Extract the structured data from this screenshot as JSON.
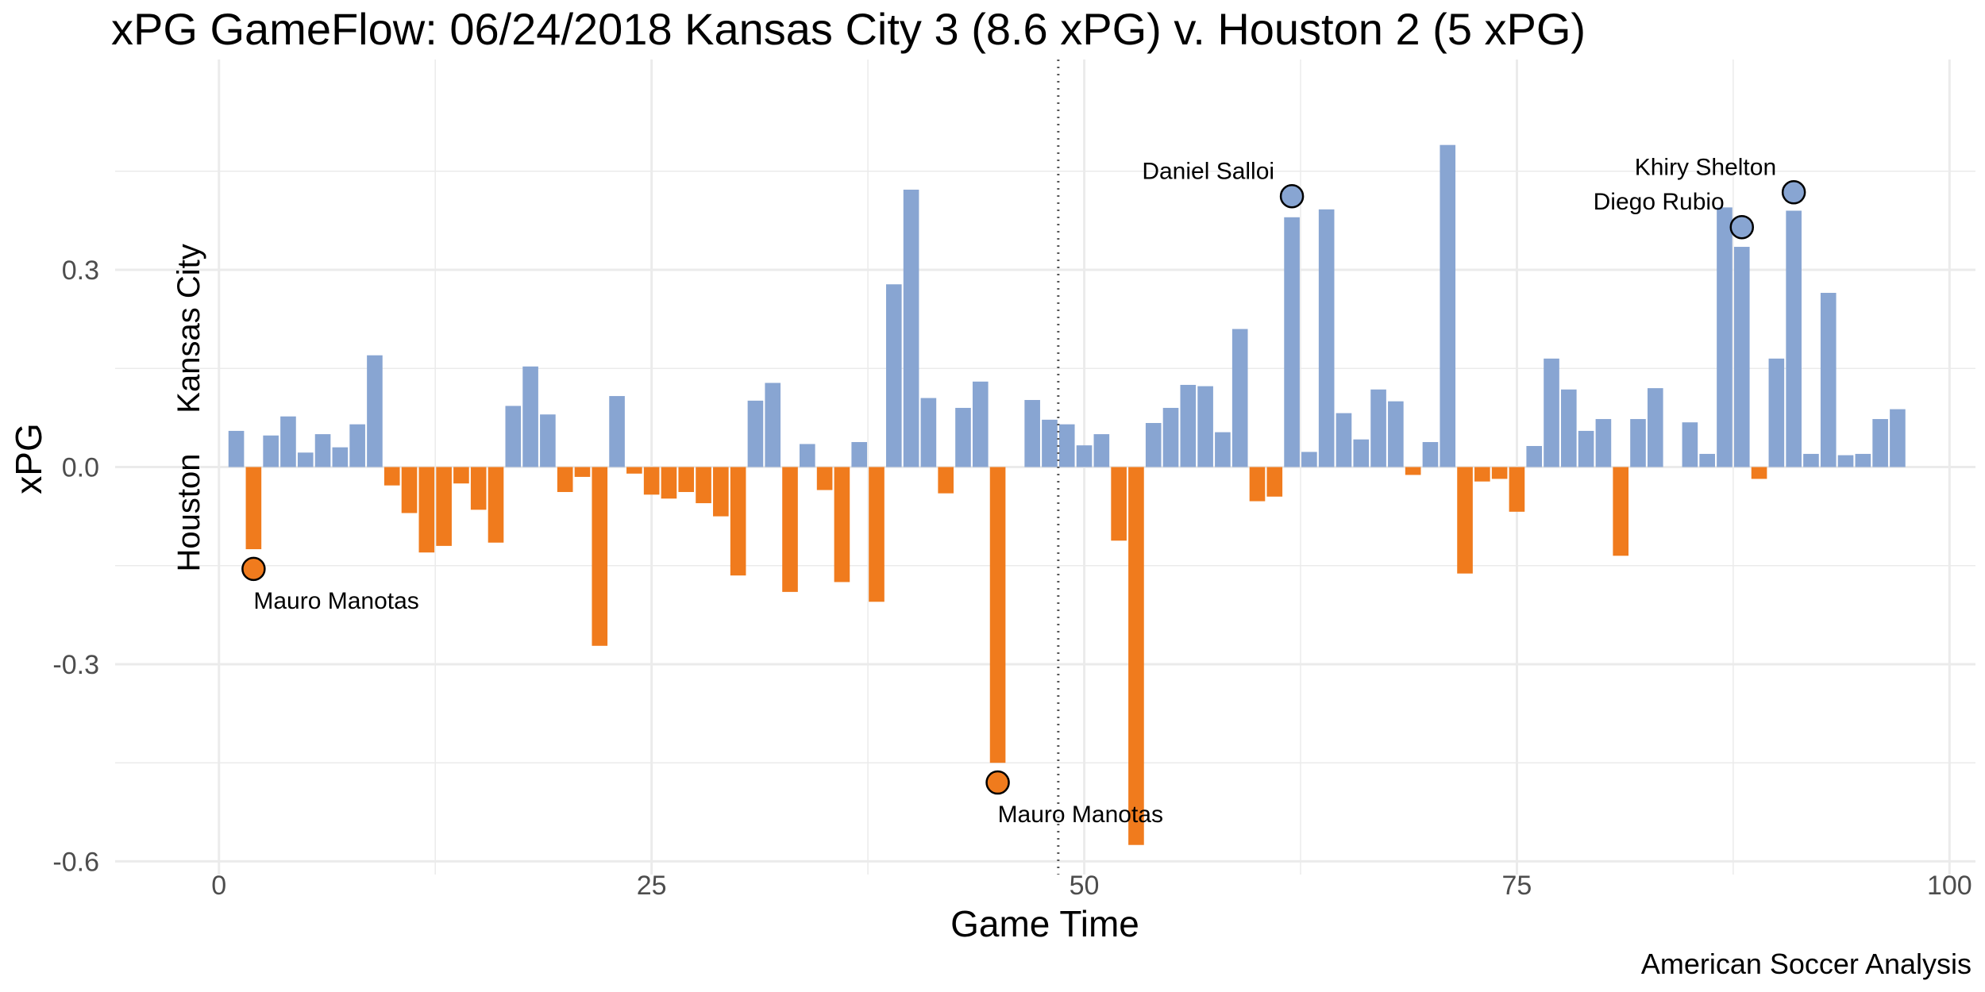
{
  "chart_data": {
    "type": "bar",
    "title": "xPG GameFlow: 06/24/2018 Kansas City 3 (8.6 xPG) v. Houston 2 (5 xPG)",
    "xlabel": "Game Time",
    "ylabel": "xPG",
    "xlim": [
      -6,
      101.5
    ],
    "ylim": [
      -0.62,
      0.62
    ],
    "xticks": [
      0,
      25,
      50,
      75,
      100
    ],
    "yticks": [
      -0.6,
      -0.3,
      0.0,
      0.3
    ],
    "ytick_labels": [
      "-0.6",
      "-0.3",
      "0.0",
      "0.3"
    ],
    "halftime": 48.5,
    "team_labels": {
      "home": "Kansas City",
      "away": "Houston"
    },
    "caption": "American Soccer Analysis",
    "colors": {
      "home": "#88a5d2",
      "away": "#f07b1d",
      "grid": "#ebebeb",
      "marker_stroke": "#000000"
    },
    "series": [
      {
        "name": "Kansas City",
        "color": "#88a5d2",
        "bars": [
          {
            "x": 1,
            "y": 0.055
          },
          {
            "x": 3,
            "y": 0.048
          },
          {
            "x": 4,
            "y": 0.077
          },
          {
            "x": 5,
            "y": 0.022
          },
          {
            "x": 6,
            "y": 0.05
          },
          {
            "x": 7,
            "y": 0.03
          },
          {
            "x": 8,
            "y": 0.065
          },
          {
            "x": 9,
            "y": 0.17
          },
          {
            "x": 17,
            "y": 0.093
          },
          {
            "x": 18,
            "y": 0.153
          },
          {
            "x": 19,
            "y": 0.08
          },
          {
            "x": 23,
            "y": 0.108
          },
          {
            "x": 31,
            "y": 0.101
          },
          {
            "x": 32,
            "y": 0.128
          },
          {
            "x": 34,
            "y": 0.035
          },
          {
            "x": 37,
            "y": 0.038
          },
          {
            "x": 39,
            "y": 0.278
          },
          {
            "x": 40,
            "y": 0.422
          },
          {
            "x": 41,
            "y": 0.105
          },
          {
            "x": 43,
            "y": 0.09
          },
          {
            "x": 44,
            "y": 0.13
          },
          {
            "x": 47,
            "y": 0.102
          },
          {
            "x": 48,
            "y": 0.072
          },
          {
            "x": 49,
            "y": 0.065
          },
          {
            "x": 50,
            "y": 0.033
          },
          {
            "x": 51,
            "y": 0.05
          },
          {
            "x": 54,
            "y": 0.067
          },
          {
            "x": 55,
            "y": 0.09
          },
          {
            "x": 56,
            "y": 0.125
          },
          {
            "x": 57,
            "y": 0.123
          },
          {
            "x": 58,
            "y": 0.053
          },
          {
            "x": 59,
            "y": 0.21
          },
          {
            "x": 62,
            "y": 0.38
          },
          {
            "x": 63,
            "y": 0.023
          },
          {
            "x": 64,
            "y": 0.392
          },
          {
            "x": 65,
            "y": 0.082
          },
          {
            "x": 66,
            "y": 0.042
          },
          {
            "x": 67,
            "y": 0.118
          },
          {
            "x": 68,
            "y": 0.1
          },
          {
            "x": 70,
            "y": 0.038
          },
          {
            "x": 71,
            "y": 0.49
          },
          {
            "x": 76,
            "y": 0.032
          },
          {
            "x": 77,
            "y": 0.165
          },
          {
            "x": 78,
            "y": 0.118
          },
          {
            "x": 79,
            "y": 0.055
          },
          {
            "x": 80,
            "y": 0.073
          },
          {
            "x": 82,
            "y": 0.073
          },
          {
            "x": 83,
            "y": 0.12
          },
          {
            "x": 85,
            "y": 0.068
          },
          {
            "x": 86,
            "y": 0.02
          },
          {
            "x": 87,
            "y": 0.395
          },
          {
            "x": 88,
            "y": 0.335
          },
          {
            "x": 90,
            "y": 0.165
          },
          {
            "x": 91,
            "y": 0.39
          },
          {
            "x": 92,
            "y": 0.02
          },
          {
            "x": 93,
            "y": 0.265
          },
          {
            "x": 94,
            "y": 0.018
          },
          {
            "x": 95,
            "y": 0.02
          },
          {
            "x": 96,
            "y": 0.073
          },
          {
            "x": 97,
            "y": 0.088
          }
        ]
      },
      {
        "name": "Houston",
        "color": "#f07b1d",
        "bars": [
          {
            "x": 2,
            "y": -0.125
          },
          {
            "x": 10,
            "y": -0.028
          },
          {
            "x": 11,
            "y": -0.07
          },
          {
            "x": 12,
            "y": -0.13
          },
          {
            "x": 13,
            "y": -0.12
          },
          {
            "x": 14,
            "y": -0.025
          },
          {
            "x": 15,
            "y": -0.065
          },
          {
            "x": 16,
            "y": -0.115
          },
          {
            "x": 20,
            "y": -0.038
          },
          {
            "x": 21,
            "y": -0.015
          },
          {
            "x": 22,
            "y": -0.272
          },
          {
            "x": 24,
            "y": -0.01
          },
          {
            "x": 25,
            "y": -0.042
          },
          {
            "x": 26,
            "y": -0.048
          },
          {
            "x": 27,
            "y": -0.038
          },
          {
            "x": 28,
            "y": -0.055
          },
          {
            "x": 29,
            "y": -0.075
          },
          {
            "x": 30,
            "y": -0.165
          },
          {
            "x": 33,
            "y": -0.19
          },
          {
            "x": 35,
            "y": -0.035
          },
          {
            "x": 36,
            "y": -0.175
          },
          {
            "x": 38,
            "y": -0.205
          },
          {
            "x": 42,
            "y": -0.04
          },
          {
            "x": 45,
            "y": -0.45
          },
          {
            "x": 52,
            "y": -0.112
          },
          {
            "x": 53,
            "y": -0.575
          },
          {
            "x": 60,
            "y": -0.052
          },
          {
            "x": 61,
            "y": -0.045
          },
          {
            "x": 69,
            "y": -0.012
          },
          {
            "x": 72,
            "y": -0.162
          },
          {
            "x": 73,
            "y": -0.022
          },
          {
            "x": 74,
            "y": -0.018
          },
          {
            "x": 75,
            "y": -0.068
          },
          {
            "x": 81,
            "y": -0.135
          },
          {
            "x": 89,
            "y": -0.018
          }
        ]
      }
    ],
    "goals": [
      {
        "player": "Mauro Manotas",
        "team": "Houston",
        "x": 2,
        "y": -0.155,
        "label_pos": "below-right"
      },
      {
        "player": "Mauro Manotas",
        "team": "Houston",
        "x": 45,
        "y": -0.48,
        "label_pos": "below-right"
      },
      {
        "player": "Daniel Salloi",
        "team": "Kansas City",
        "x": 62,
        "y": 0.412,
        "label_pos": "above-left"
      },
      {
        "player": "Diego Rubio",
        "team": "Kansas City",
        "x": 88,
        "y": 0.365,
        "label_pos": "above-left"
      },
      {
        "player": "Khiry Shelton",
        "team": "Kansas City",
        "x": 91,
        "y": 0.418,
        "label_pos": "above-left"
      }
    ]
  }
}
